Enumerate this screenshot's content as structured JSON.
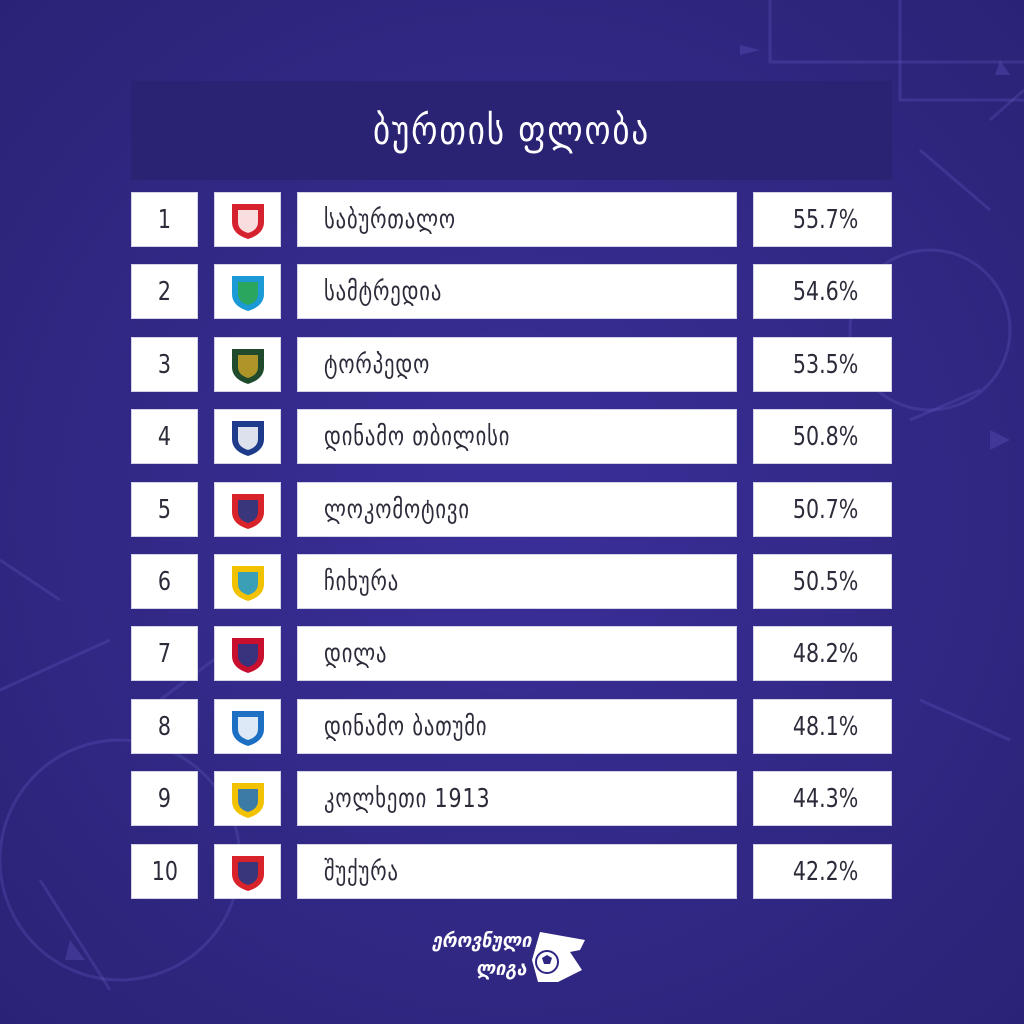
{
  "header": {
    "title": "ბურთის ფლობა"
  },
  "rows": [
    {
      "rank": "1",
      "team": "საბურთალო",
      "value": "55.7%",
      "logo": "saburtalo-logo",
      "colors": [
        "#d6212f",
        "#ffffff"
      ]
    },
    {
      "rank": "2",
      "team": "სამტრედია",
      "value": "54.6%",
      "logo": "samtredia-logo",
      "colors": [
        "#1b9ad6",
        "#2da84a"
      ]
    },
    {
      "rank": "3",
      "team": "ტორპედო",
      "value": "53.5%",
      "logo": "torpedo-logo",
      "colors": [
        "#1f4a2c",
        "#c9a227"
      ]
    },
    {
      "rank": "4",
      "team": "დინამო თბილისი",
      "value": "50.8%",
      "logo": "dinamo-tbilisi-logo",
      "colors": [
        "#1e3a8a",
        "#ffffff"
      ]
    },
    {
      "rank": "5",
      "team": "ლოკომოტივი",
      "value": "50.7%",
      "logo": "lokomotivi-logo",
      "colors": [
        "#d8232a",
        "#1e3a8a"
      ]
    },
    {
      "rank": "6",
      "team": "ჩიხურა",
      "value": "50.5%",
      "logo": "chikhura-logo",
      "colors": [
        "#f2c200",
        "#1b9ad6"
      ]
    },
    {
      "rank": "7",
      "team": "დილა",
      "value": "48.2%",
      "logo": "dila-logo",
      "colors": [
        "#c8102e",
        "#1e3a8a"
      ]
    },
    {
      "rank": "8",
      "team": "დინამო ბათუმი",
      "value": "48.1%",
      "logo": "dinamo-batumi-logo",
      "colors": [
        "#1d6fc4",
        "#ffffff"
      ]
    },
    {
      "rank": "9",
      "team": "კოლხეთი 1913",
      "value": "44.3%",
      "logo": "kolkheti-logo",
      "colors": [
        "#f2c200",
        "#1d6fc4"
      ]
    },
    {
      "rank": "10",
      "team": "შუქურა",
      "value": "42.2%",
      "logo": "shukura-logo",
      "colors": [
        "#d8232a",
        "#1e3a8a"
      ]
    }
  ],
  "chart_data": {
    "type": "table",
    "title": "ბურთის ფლობა",
    "columns": [
      "",
      "",
      "",
      ""
    ],
    "categories": [
      "საბურთალო",
      "სამტრედია",
      "ტორპედო",
      "დინამო თბილისი",
      "ლოკომოტივი",
      "ჩიხურა",
      "დილა",
      "დინამო ბათუმი",
      "კოლხეთი 1913",
      "შუქურა"
    ],
    "values": [
      55.7,
      54.6,
      53.5,
      50.8,
      50.7,
      50.5,
      48.2,
      48.1,
      44.3,
      42.2
    ]
  },
  "footer": {
    "line1": "ეროვნული",
    "line2": "ლიგა"
  },
  "colors": {
    "background": "#2e2781",
    "title_bar": "#2a2273",
    "cell": "#ffffff",
    "text": "#2b2b3a"
  }
}
